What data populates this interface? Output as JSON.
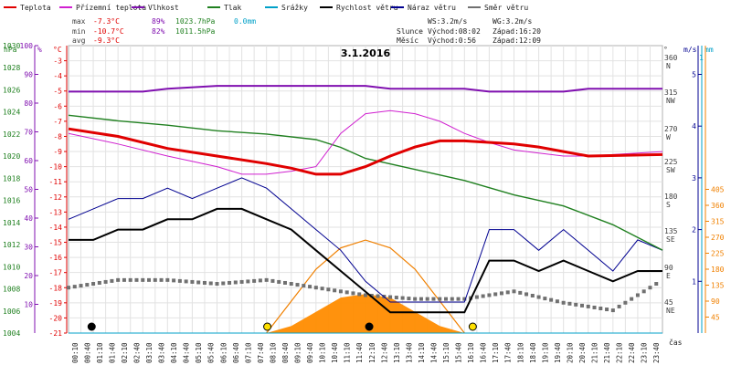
{
  "chart_data": {
    "type": "line",
    "title": "3.1.2016",
    "xlabel": "čas",
    "legend": [
      {
        "label": "Teplota",
        "color": "#e00000"
      },
      {
        "label": "Přízemní teplota",
        "color": "#d020d0"
      },
      {
        "label": "Vlhkost",
        "color": "#8010b0"
      },
      {
        "label": "Tlak",
        "color": "#208020"
      },
      {
        "label": "Srážky",
        "color": "#00a0c8"
      },
      {
        "label": "Rychlost větru",
        "color": "#000000"
      },
      {
        "label": "Náraz větru",
        "color": "#000090"
      },
      {
        "label": "Směr větru",
        "color": "#707070"
      }
    ],
    "stats": {
      "max_label": "max",
      "min_label": "min",
      "avg_label": "avg",
      "max_temp": "-7.3°C",
      "max_hum": "89%",
      "max_press": "1023.7hPa",
      "max_rain": "0.0mm",
      "min_temp": "-10.7°C",
      "min_hum": "82%",
      "min_press": "1011.5hPa",
      "avg_temp": "-9.3°C"
    },
    "wind_info": {
      "ws": "WS:3.2m/s",
      "wg": "WG:3.2m/s"
    },
    "sun_moon": {
      "sun_label": "Slunce",
      "moon_label": "Měsíc",
      "sun_rise": "Východ:08:02",
      "sun_set": "Západ:16:20",
      "moon_rise": "Východ:0:56",
      "moon_set": "Západ:12:09"
    },
    "axis_units": {
      "hpa": "hPa",
      "pct": "%",
      "degc": "°C",
      "deg": "°",
      "ms": "m/s",
      "mm": "mm"
    },
    "x_ticks": [
      "00:10",
      "00:40",
      "01:10",
      "01:40",
      "02:10",
      "02:40",
      "03:10",
      "03:40",
      "04:10",
      "04:40",
      "05:10",
      "05:40",
      "06:10",
      "06:40",
      "07:10",
      "07:40",
      "08:10",
      "08:40",
      "09:10",
      "09:40",
      "10:10",
      "10:40",
      "11:10",
      "11:40",
      "12:10",
      "12:40",
      "13:10",
      "13:40",
      "14:10",
      "14:40",
      "15:10",
      "15:40",
      "16:10",
      "16:40",
      "17:10",
      "17:40",
      "18:10",
      "18:40",
      "19:10",
      "19:40",
      "20:10",
      "20:40",
      "21:10",
      "21:40",
      "22:10",
      "22:40",
      "23:10",
      "23:40"
    ],
    "axes": {
      "pressure": {
        "range": [
          1004,
          1030
        ],
        "ticks": [
          1004,
          1006,
          1008,
          1010,
          1012,
          1014,
          1016,
          1018,
          1020,
          1022,
          1024,
          1026,
          1028,
          1030
        ]
      },
      "humidity": {
        "range": [
          0,
          100
        ],
        "ticks": [
          10,
          20,
          30,
          40,
          50,
          60,
          70,
          80,
          90,
          100
        ]
      },
      "temperature": {
        "range": [
          -21,
          -2
        ],
        "ticks": [
          -3,
          -4,
          -5,
          -6,
          -7,
          -8,
          -9,
          -10,
          -11,
          -12,
          -13,
          -14,
          -15,
          -16,
          -17,
          -18,
          -19,
          -20,
          -21
        ]
      },
      "direction": {
        "ticks": [
          {
            "deg": "360",
            "name": "N"
          },
          {
            "deg": "315",
            "name": "NW"
          },
          {
            "deg": "270",
            "name": "W"
          },
          {
            "deg": "225",
            "name": "SW"
          },
          {
            "deg": "180",
            "name": "S"
          },
          {
            "deg": "135",
            "name": "SE"
          },
          {
            "deg": "90",
            "name": "E"
          },
          {
            "deg": "45",
            "name": "NE"
          }
        ]
      },
      "wind_speed": {
        "range": [
          0,
          5
        ],
        "ticks": [
          "1",
          "2",
          "3",
          "4",
          "5"
        ]
      },
      "rain": {
        "ticks": [
          "1"
        ]
      },
      "solar": {
        "range": [
          0,
          405
        ],
        "ticks": [
          "45",
          "90",
          "135",
          "180",
          "225",
          "270",
          "315",
          "360",
          "405"
        ]
      }
    },
    "series": [
      {
        "name": "Teplota",
        "unit": "°C",
        "x": [
          0,
          2,
          4,
          6,
          8,
          9,
          10,
          11,
          12,
          13,
          14,
          15,
          16,
          18,
          19,
          20,
          21,
          24
        ],
        "y": [
          -7.5,
          -8.0,
          -8.8,
          -9.3,
          -9.8,
          -10.1,
          -10.5,
          -10.5,
          -10.0,
          -9.3,
          -8.7,
          -8.3,
          -8.3,
          -8.5,
          -8.7,
          -9.0,
          -9.3,
          -9.2
        ]
      },
      {
        "name": "Přízemní teplota",
        "unit": "°C",
        "x": [
          0,
          2,
          4,
          6,
          7,
          8,
          9,
          10,
          11,
          12,
          13,
          14,
          15,
          16,
          17,
          18,
          19,
          20,
          21,
          24
        ],
        "y": [
          -7.8,
          -8.5,
          -9.3,
          -10.0,
          -10.5,
          -10.5,
          -10.3,
          -10.0,
          -7.8,
          -6.5,
          -6.3,
          -6.5,
          -7.0,
          -7.8,
          -8.4,
          -8.9,
          -9.1,
          -9.3,
          -9.3,
          -9.0
        ]
      },
      {
        "name": "Vlhkost",
        "unit": "%",
        "x": [
          0,
          3,
          4,
          6,
          8,
          12,
          13,
          16,
          17,
          20,
          21,
          24
        ],
        "y": [
          84,
          84,
          85,
          86,
          86,
          86,
          85,
          85,
          84,
          84,
          85,
          85
        ]
      },
      {
        "name": "Tlak",
        "unit": "hPa",
        "x": [
          0,
          2,
          4,
          6,
          8,
          10,
          11,
          12,
          14,
          16,
          18,
          20,
          22,
          24
        ],
        "y": [
          1023.7,
          1023.2,
          1022.8,
          1022.3,
          1022.0,
          1021.5,
          1020.8,
          1019.8,
          1018.8,
          1017.8,
          1016.5,
          1015.5,
          1013.8,
          1011.5
        ]
      },
      {
        "name": "Srážky",
        "unit": "mm",
        "x": [
          0,
          24
        ],
        "y": [
          0,
          0
        ]
      },
      {
        "name": "Rychlost větru",
        "unit": "m/s",
        "x": [
          0,
          1,
          2,
          3,
          4,
          5,
          6,
          7,
          8,
          9,
          10,
          11,
          12,
          13,
          14,
          15,
          16,
          17,
          18,
          19,
          20,
          21,
          22,
          23,
          24
        ],
        "y": [
          1.8,
          1.8,
          2.0,
          2.0,
          2.2,
          2.2,
          2.4,
          2.4,
          2.2,
          2.0,
          1.6,
          1.2,
          0.8,
          0.4,
          0.4,
          0.4,
          0.4,
          1.4,
          1.4,
          1.2,
          1.4,
          1.2,
          1.0,
          1.2,
          1.2
        ]
      },
      {
        "name": "Náraz větru",
        "unit": "m/s",
        "x": [
          0,
          1,
          2,
          3,
          4,
          5,
          6,
          7,
          8,
          9,
          10,
          11,
          12,
          13,
          14,
          15,
          16,
          17,
          18,
          19,
          20,
          21,
          22,
          23,
          24
        ],
        "y": [
          2.2,
          2.4,
          2.6,
          2.6,
          2.8,
          2.6,
          2.8,
          3.0,
          2.8,
          2.4,
          2.0,
          1.6,
          1.0,
          0.6,
          0.6,
          0.6,
          0.6,
          2.0,
          2.0,
          1.6,
          2.0,
          1.6,
          1.2,
          1.8,
          1.6
        ]
      },
      {
        "name": "Směr větru",
        "unit": "°",
        "x": [
          0,
          2,
          4,
          6,
          8,
          10,
          12,
          14,
          16,
          18,
          20,
          22,
          24
        ],
        "y": [
          60,
          70,
          70,
          65,
          70,
          60,
          50,
          45,
          45,
          55,
          40,
          30,
          70
        ]
      },
      {
        "name": "Solar",
        "unit": "W/m²",
        "x": [
          8,
          9,
          10,
          11,
          12,
          13,
          14,
          15,
          16
        ],
        "y": [
          0,
          20,
          60,
          100,
          110,
          100,
          60,
          20,
          0
        ]
      }
    ],
    "theoretical_solar": {
      "x": [
        8,
        9,
        10,
        11,
        12,
        13,
        14,
        15,
        16
      ],
      "y": [
        0,
        90,
        180,
        240,
        262,
        240,
        180,
        90,
        0
      ]
    }
  }
}
